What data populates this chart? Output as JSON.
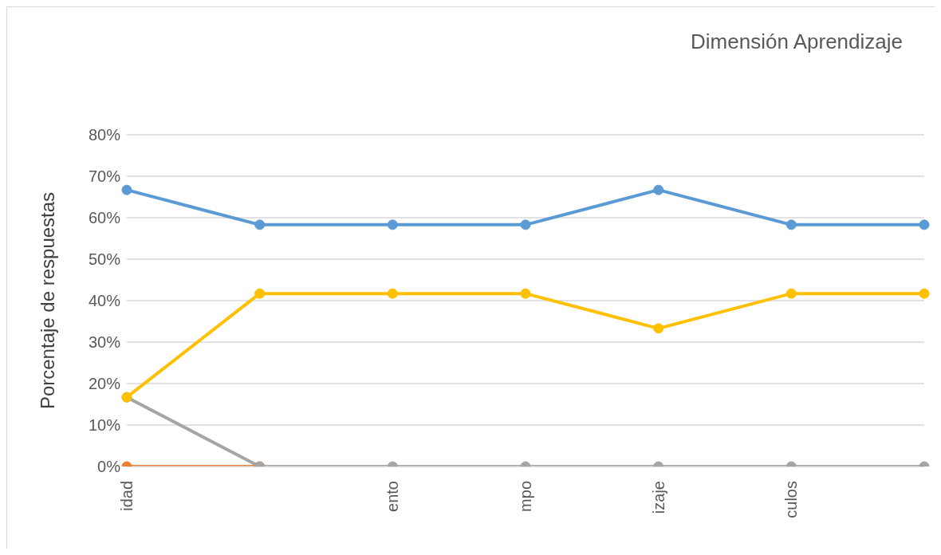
{
  "chart_data": {
    "type": "line",
    "title": "Dimensión Aprendizaje",
    "ylabel": "Porcentaje de respuestas",
    "categories": [
      "idad",
      null,
      "ento",
      "mpo",
      "izaje",
      "culos",
      null
    ],
    "series": [
      {
        "color": "#5b9bd5",
        "values": [
          66.7,
          58.3,
          58.3,
          58.3,
          66.7,
          58.3,
          58.3
        ]
      },
      {
        "color": "#ed7d31",
        "values": [
          0,
          0,
          null,
          null,
          null,
          null,
          null
        ]
      },
      {
        "color": "#a5a5a5",
        "values": [
          16.7,
          0,
          0,
          0,
          0,
          0,
          0
        ]
      },
      {
        "color": "#ffc000",
        "values": [
          16.7,
          41.7,
          41.7,
          41.7,
          33.3,
          41.7,
          41.7
        ]
      }
    ],
    "ylim": [
      0,
      80
    ],
    "yticks": [
      {
        "value": 0,
        "label": "0%"
      },
      {
        "value": 10,
        "label": "10%"
      },
      {
        "value": 20,
        "label": "20%"
      },
      {
        "value": 30,
        "label": "30%"
      },
      {
        "value": 40,
        "label": "40%"
      },
      {
        "value": 50,
        "label": "50%"
      },
      {
        "value": 60,
        "label": "60%"
      },
      {
        "value": 70,
        "label": "70%"
      },
      {
        "value": 80,
        "label": "80%"
      }
    ],
    "grid": "y",
    "marker": "circle",
    "line_style": "solid"
  }
}
